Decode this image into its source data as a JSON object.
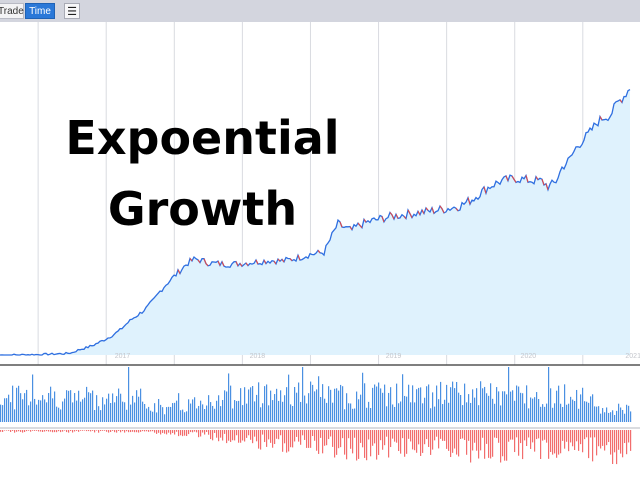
{
  "toolbar": {
    "trade_label": "Trade",
    "time_label": "Time",
    "menu_icon": "hamburger-menu-icon"
  },
  "overlay": {
    "line1": "Expoential",
    "line2": "Growth"
  },
  "colors": {
    "area_fill": "#dff2fd",
    "price_line_up": "#2f6fe0",
    "price_line_down": "#e04848",
    "volume_buy": "#4a90e2",
    "volume_sell": "#f26d6d",
    "grid": "#d9dbe0",
    "toolbar_bg": "#d3d5de",
    "active_button": "#2a78d8"
  },
  "chart_data": {
    "type": "area",
    "x_ticks": [
      "2017",
      "2018",
      "2019",
      "2020",
      "2021"
    ],
    "grid": true,
    "price_series": {
      "x": [
        2016.52,
        2016.6,
        2016.7,
        2016.8,
        2016.9,
        2017.0,
        2017.05,
        2017.1,
        2017.15,
        2017.2,
        2017.25,
        2017.3,
        2017.35,
        2017.4,
        2017.45,
        2017.5,
        2017.55,
        2017.6,
        2017.65,
        2017.7,
        2017.75,
        2017.8,
        2017.85,
        2017.9,
        2017.95,
        2018.0,
        2018.05,
        2018.1,
        2018.15,
        2018.2,
        2018.3,
        2018.4,
        2018.5,
        2018.6,
        2018.7,
        2018.8,
        2018.9,
        2019.0,
        2019.05,
        2019.1,
        2019.15,
        2019.2,
        2019.3,
        2019.4,
        2019.5,
        2019.6,
        2019.7,
        2019.8,
        2019.9,
        2020.0,
        2020.05,
        2020.1,
        2020.15,
        2020.2,
        2020.3,
        2020.4,
        2020.5,
        2020.55,
        2020.6,
        2020.65,
        2020.7,
        2020.75,
        2020.8,
        2020.85,
        2020.9,
        2020.95,
        2021.0,
        2021.05,
        2021.1,
        2021.15,
        2021.2
      ],
      "values": [
        0.0,
        0.0,
        0.2,
        0.5,
        1.0,
        1.5,
        2.5,
        5.5,
        7.5,
        10.0,
        13.5,
        17.0,
        21.0,
        26.0,
        33.0,
        39.0,
        44.0,
        50.0,
        58.0,
        68.0,
        76.0,
        83.0,
        90.0,
        97.0,
        101.0,
        99.5,
        97.0,
        96.5,
        96.0,
        95.5,
        96.5,
        98.0,
        99.5,
        99.0,
        102.0,
        106.0,
        108.0,
        138.0,
        134.0,
        131.0,
        136.0,
        139.0,
        143.0,
        146.0,
        148.0,
        150.0,
        152.0,
        154.0,
        157.0,
        165.0,
        171.0,
        176.0,
        180.0,
        183.0,
        186.0,
        184.0,
        183.0,
        177.0,
        182.0,
        198.0,
        205.0,
        218.0,
        226.0,
        234.0,
        244.0,
        250.0,
        252.0,
        265.0,
        272.0,
        282.0,
        272.0
      ],
      "ylim": [
        0,
        300
      ]
    },
    "volume_buy": {
      "x": [
        2016.5,
        2016.75,
        2017.0,
        2017.25,
        2017.5,
        2017.75,
        2018.0,
        2018.25,
        2018.5,
        2018.75,
        2019.0,
        2019.25,
        2019.5,
        2019.75,
        2020.0,
        2020.25,
        2020.5,
        2020.75,
        2021.0,
        2021.2
      ],
      "values": [
        28,
        33,
        30,
        28,
        30,
        15,
        25,
        32,
        34,
        35,
        30,
        33,
        32,
        33,
        34,
        32,
        33,
        32,
        12,
        22
      ],
      "ylim": [
        0,
        60
      ]
    },
    "volume_sell": {
      "x": [
        2016.5,
        2016.75,
        2017.0,
        2017.25,
        2017.5,
        2017.75,
        2018.0,
        2018.25,
        2018.5,
        2018.75,
        2019.0,
        2019.25,
        2019.5,
        2019.75,
        2020.0,
        2020.25,
        2020.5,
        2020.75,
        2021.0,
        2021.2
      ],
      "values": [
        2,
        2,
        2,
        2,
        2,
        4,
        6,
        12,
        16,
        18,
        22,
        24,
        20,
        22,
        26,
        24,
        22,
        20,
        30,
        28
      ],
      "ylim": [
        0,
        50
      ]
    }
  }
}
